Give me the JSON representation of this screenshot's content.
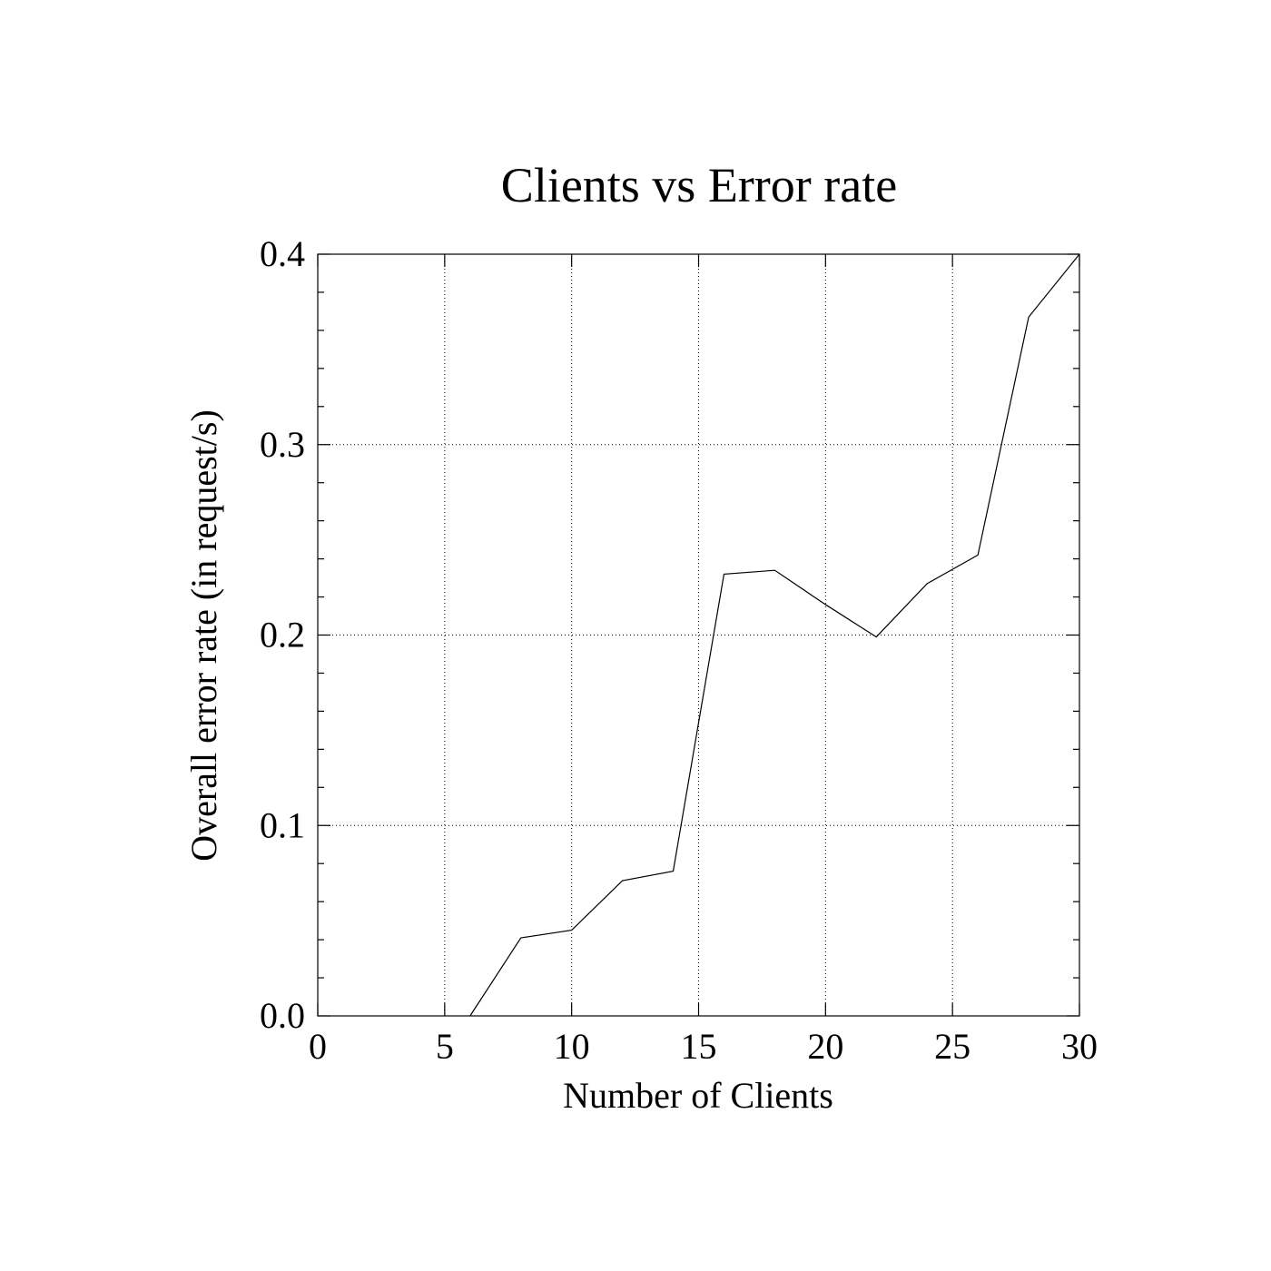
{
  "chart_data": {
    "type": "line",
    "title": "Clients vs Error rate",
    "xlabel": "Number of Clients",
    "ylabel": "Overall error rate (in request/s)",
    "xlim": [
      0,
      30
    ],
    "ylim": [
      0,
      0.4
    ],
    "x_ticks": [
      0,
      5,
      10,
      15,
      20,
      25,
      30
    ],
    "x_tick_labels": [
      "0",
      "5",
      "10",
      "15",
      "20",
      "25",
      "30"
    ],
    "y_ticks": [
      0,
      0.1,
      0.2,
      0.3,
      0.4
    ],
    "y_tick_labels": [
      "0.0",
      "0.1",
      "0.2",
      "0.3",
      "0.4"
    ],
    "y_minor_step": 0.02,
    "grid": true,
    "legend": "none",
    "series": [
      {
        "x": [
          6,
          8,
          10,
          12,
          14,
          16,
          18,
          20,
          22,
          24,
          26,
          28,
          30
        ],
        "y": [
          0.0,
          0.041,
          0.045,
          0.071,
          0.076,
          0.232,
          0.234,
          0.216,
          0.199,
          0.227,
          0.242,
          0.367,
          0.4
        ],
        "color": "#000000"
      }
    ]
  }
}
